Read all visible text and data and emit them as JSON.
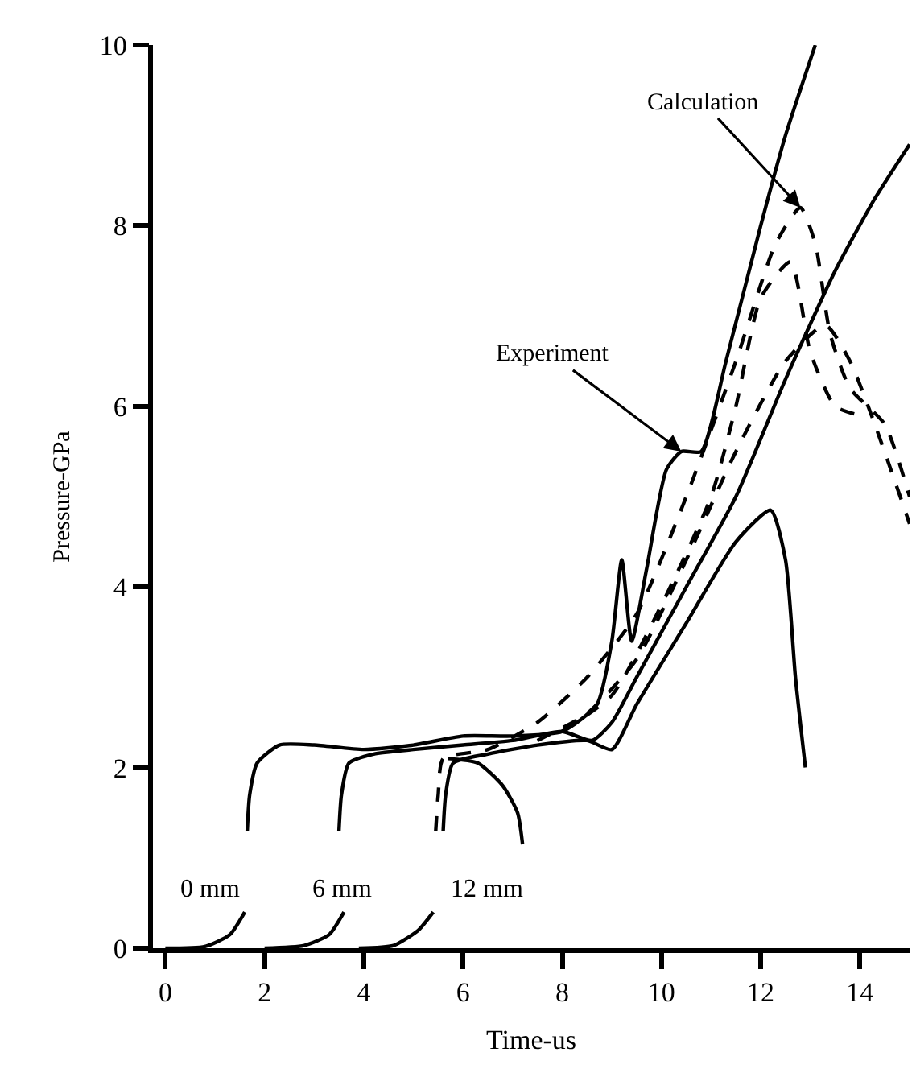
{
  "chart_data": {
    "type": "line",
    "xlabel": "Time-us",
    "ylabel": "Pressure-GPa",
    "xlim": [
      -0.25,
      15
    ],
    "xticks": [
      0,
      2,
      4,
      6,
      8,
      10,
      12,
      14
    ],
    "ylim": [
      0,
      10
    ],
    "yticks": [
      0,
      2,
      4,
      6,
      8,
      10
    ],
    "grid": false,
    "marker": "none",
    "series": [
      {
        "color": "#000000",
        "line_style": "solid",
        "x": [
          0,
          0.8,
          1.3,
          1.6
        ],
        "values": [
          0,
          0.02,
          0.15,
          0.4
        ]
      },
      {
        "color": "#000000",
        "line_style": "solid",
        "x": [
          2.0,
          2.8,
          3.3,
          3.6
        ],
        "values": [
          0,
          0.03,
          0.15,
          0.4
        ]
      },
      {
        "color": "#000000",
        "line_style": "solid",
        "x": [
          3.9,
          4.6,
          5.1,
          5.4
        ],
        "values": [
          0,
          0.03,
          0.2,
          0.4
        ]
      },
      {
        "color": "#000000",
        "line_style": "solid",
        "x": [
          1.65,
          1.7,
          1.85,
          2.3,
          3,
          4,
          5,
          6,
          7,
          8,
          8.7,
          9.0,
          9.2,
          9.4,
          9.7,
          10.1,
          10.4,
          10.8,
          11.3,
          12,
          12.5,
          13.1
        ],
        "values": [
          1.3,
          1.7,
          2.05,
          2.25,
          2.25,
          2.2,
          2.25,
          2.35,
          2.35,
          2.4,
          2.7,
          3.4,
          4.3,
          3.4,
          4.2,
          5.3,
          5.5,
          5.5,
          6.5,
          8.0,
          9.0,
          10.0
        ]
      },
      {
        "color": "#000000",
        "line_style": "solid",
        "x": [
          3.5,
          3.55,
          3.7,
          4.2,
          5,
          6,
          7,
          8,
          8.6,
          9.0,
          9.5,
          10.5,
          11.5,
          12.5,
          13.5,
          14.3,
          15
        ],
        "values": [
          1.3,
          1.7,
          2.05,
          2.15,
          2.2,
          2.25,
          2.3,
          2.4,
          2.3,
          2.5,
          3.0,
          4.0,
          5.0,
          6.3,
          7.5,
          8.3,
          8.9
        ]
      },
      {
        "color": "#000000",
        "line_style": "solid",
        "x": [
          5.6,
          5.65,
          5.8,
          6.5,
          7.5,
          8.5,
          9.0,
          9.5,
          10.5,
          11.5,
          12.2,
          12.5,
          12.7,
          12.9
        ],
        "values": [
          1.3,
          1.7,
          2.05,
          2.15,
          2.25,
          2.3,
          2.2,
          2.7,
          3.6,
          4.5,
          4.85,
          4.3,
          3.0,
          2.0
        ]
      },
      {
        "color": "#000000",
        "line_style": "solid",
        "x": [
          5.7,
          6.3,
          6.8,
          7.1,
          7.2
        ],
        "values": [
          2.1,
          2.05,
          1.8,
          1.5,
          1.15
        ]
      },
      {
        "color": "#000000",
        "line_style": "dashed",
        "x": [
          5.45,
          5.5,
          5.6,
          6.5,
          7.5,
          8.5,
          9.5,
          10.5,
          11.5,
          12.3,
          12.8,
          13.1,
          13.4,
          13.8,
          14.5,
          15
        ],
        "values": [
          1.3,
          1.7,
          2.1,
          2.2,
          2.5,
          3.0,
          3.7,
          5.0,
          6.5,
          7.8,
          8.2,
          7.8,
          6.8,
          6.2,
          5.8,
          5.0
        ]
      },
      {
        "color": "#000000",
        "line_style": "dashed",
        "x": [
          7.5,
          8.5,
          9.5,
          10.5,
          11.5,
          12.5,
          13.3,
          13.8,
          14.3,
          15
        ],
        "values": [
          2.3,
          2.6,
          3.2,
          4.3,
          5.5,
          6.5,
          6.9,
          6.5,
          5.8,
          4.7
        ]
      },
      {
        "color": "#000000",
        "line_style": "dashed",
        "x": [
          8,
          9,
          10,
          11,
          11.5,
          12,
          12.6,
          13,
          13.5,
          14
        ],
        "values": [
          2.4,
          2.8,
          3.8,
          5.0,
          6.0,
          7.2,
          7.6,
          6.6,
          6.0,
          5.9
        ]
      }
    ],
    "annotations": [
      {
        "text": "Experiment",
        "x": 10.4,
        "y": 5.5
      },
      {
        "text": "Calculation",
        "x": 12.8,
        "y": 8.2
      },
      "0 mm",
      "6 mm",
      "12 mm"
    ]
  }
}
